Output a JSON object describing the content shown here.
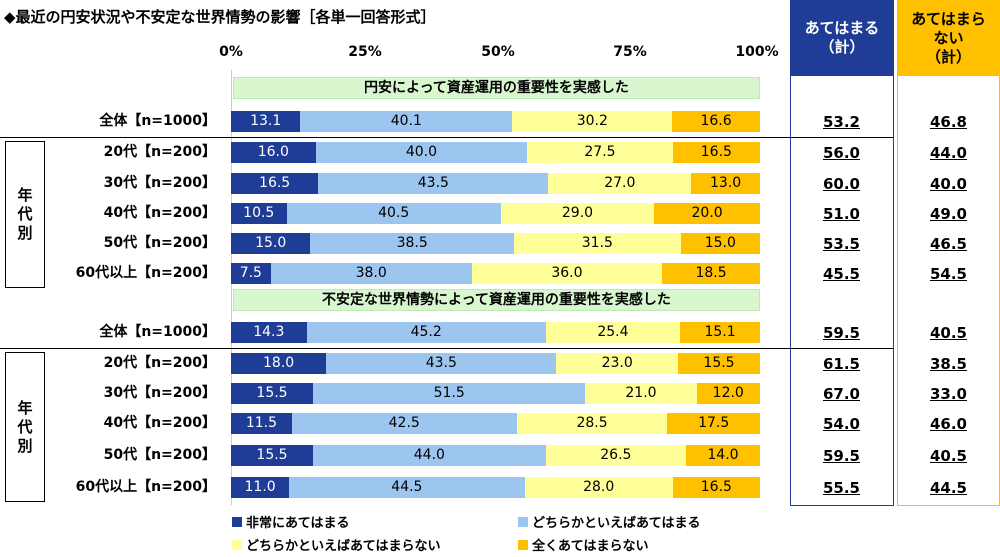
{
  "title": "◆最近の円安状況や不安定な世界情勢の影響［各単一回答形式］",
  "colors": {
    "very": "#1f3c96",
    "somewhat": "#9cc5f0",
    "somewhatnot": "#ffff99",
    "not": "#ffc000",
    "yes_col": "#1f3c96",
    "no_col": "#ffc000"
  },
  "columns": {
    "yes": "あてはまる\n（計）",
    "no": "あてはまら\nない\n（計）"
  },
  "group_label": "年\n代\n別",
  "chart_data": {
    "type": "bar",
    "stacked": true,
    "orientation": "horizontal",
    "xlim": [
      0,
      100
    ],
    "ticks": [
      "0%",
      "25%",
      "50%",
      "75%",
      "100%"
    ],
    "legend": [
      "非常にあてはまる",
      "どちらかといえばあてはまる",
      "どちらかといえばあてはまらない",
      "全くあてはまらない"
    ],
    "legend_position": "bottom",
    "sections": [
      {
        "title": "円安によって資産運用の重要性を実感した",
        "rows": [
          {
            "label": "全体【n=1000】",
            "values": [
              13.1,
              40.1,
              30.2,
              16.6
            ],
            "yes": "53.2",
            "no": "46.8"
          },
          {
            "label": "20代【n=200】",
            "values": [
              16.0,
              40.0,
              27.5,
              16.5
            ],
            "yes": "56.0",
            "no": "44.0"
          },
          {
            "label": "30代【n=200】",
            "values": [
              16.5,
              43.5,
              27.0,
              13.0
            ],
            "yes": "60.0",
            "no": "40.0"
          },
          {
            "label": "40代【n=200】",
            "values": [
              10.5,
              40.5,
              29.0,
              20.0
            ],
            "yes": "51.0",
            "no": "49.0"
          },
          {
            "label": "50代【n=200】",
            "values": [
              15.0,
              38.5,
              31.5,
              15.0
            ],
            "yes": "53.5",
            "no": "46.5"
          },
          {
            "label": "60代以上【n=200】",
            "values": [
              7.5,
              38.0,
              36.0,
              18.5
            ],
            "yes": "45.5",
            "no": "54.5"
          }
        ]
      },
      {
        "title": "不安定な世界情勢によって資産運用の重要性を実感した",
        "rows": [
          {
            "label": "全体【n=1000】",
            "values": [
              14.3,
              45.2,
              25.4,
              15.1
            ],
            "yes": "59.5",
            "no": "40.5"
          },
          {
            "label": "20代【n=200】",
            "values": [
              18.0,
              43.5,
              23.0,
              15.5
            ],
            "yes": "61.5",
            "no": "38.5"
          },
          {
            "label": "30代【n=200】",
            "values": [
              15.5,
              51.5,
              21.0,
              12.0
            ],
            "yes": "67.0",
            "no": "33.0"
          },
          {
            "label": "40代【n=200】",
            "values": [
              11.5,
              42.5,
              28.5,
              17.5
            ],
            "yes": "54.0",
            "no": "46.0"
          },
          {
            "label": "50代【n=200】",
            "values": [
              15.5,
              44.0,
              26.5,
              14.0
            ],
            "yes": "59.5",
            "no": "40.5"
          },
          {
            "label": "60代以上【n=200】",
            "values": [
              11.0,
              44.5,
              28.0,
              16.5
            ],
            "yes": "55.5",
            "no": "44.5"
          }
        ]
      }
    ]
  }
}
